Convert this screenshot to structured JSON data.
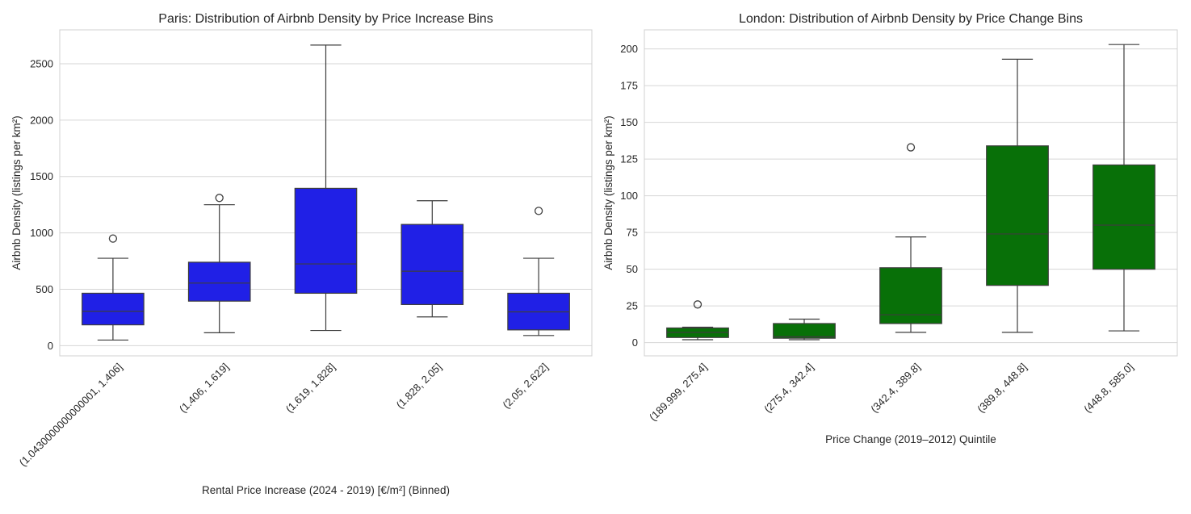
{
  "chart_data": [
    {
      "type": "box",
      "title": "Paris: Distribution of Airbnb Density by Price Increase Bins",
      "xlabel": "Rental Price Increase (2024 - 2019) [€/m²] (Binned)",
      "ylabel": "Airbnb Density (listings per km²)",
      "ylim": [
        -90,
        2800
      ],
      "yticks": [
        0,
        500,
        1000,
        1500,
        2000,
        2500
      ],
      "grid": true,
      "box_color": "#2020e6",
      "categories": [
        "(1.0430000000000001, 1.406]",
        "(1.406, 1.619]",
        "(1.619, 1.828]",
        "(1.828, 2.05]",
        "(2.05, 2.622]"
      ],
      "boxes": [
        {
          "whisker_low": 50,
          "q1": 185,
          "median": 305,
          "q3": 465,
          "whisker_high": 775,
          "outliers": [
            950
          ]
        },
        {
          "whisker_low": 115,
          "q1": 395,
          "median": 555,
          "q3": 740,
          "whisker_high": 1250,
          "outliers": [
            1310
          ]
        },
        {
          "whisker_low": 135,
          "q1": 465,
          "median": 725,
          "q3": 1395,
          "whisker_high": 2665,
          "outliers": []
        },
        {
          "whisker_low": 255,
          "q1": 365,
          "median": 660,
          "q3": 1075,
          "whisker_high": 1285,
          "outliers": []
        },
        {
          "whisker_low": 90,
          "q1": 140,
          "median": 300,
          "q3": 465,
          "whisker_high": 775,
          "outliers": [
            1195
          ]
        }
      ]
    },
    {
      "type": "box",
      "title": "London: Distribution of Airbnb Density by Price Change Bins",
      "xlabel": "Price Change (2019–2012) Quintile",
      "ylabel": "Airbnb Density (listings per km²)",
      "ylim": [
        -9,
        213
      ],
      "yticks": [
        0,
        25,
        50,
        75,
        100,
        125,
        150,
        175,
        200
      ],
      "grid": true,
      "box_color": "#087008",
      "categories": [
        "(189.999, 275.4]",
        "(275.4, 342.4]",
        "(342.4, 389.8]",
        "(389.8, 448.8]",
        "(448.8, 585.0]"
      ],
      "boxes": [
        {
          "whisker_low": 2,
          "q1": 3.5,
          "median": 7,
          "q3": 10,
          "whisker_high": 10.5,
          "outliers": [
            26
          ]
        },
        {
          "whisker_low": 2,
          "q1": 3,
          "median": 4,
          "q3": 13,
          "whisker_high": 16,
          "outliers": []
        },
        {
          "whisker_low": 7,
          "q1": 13,
          "median": 19,
          "q3": 51,
          "whisker_high": 72,
          "outliers": [
            133
          ]
        },
        {
          "whisker_low": 7,
          "q1": 39,
          "median": 74,
          "q3": 134,
          "whisker_high": 193,
          "outliers": []
        },
        {
          "whisker_low": 8,
          "q1": 50,
          "median": 80,
          "q3": 121,
          "whisker_high": 203,
          "outliers": []
        }
      ]
    }
  ]
}
